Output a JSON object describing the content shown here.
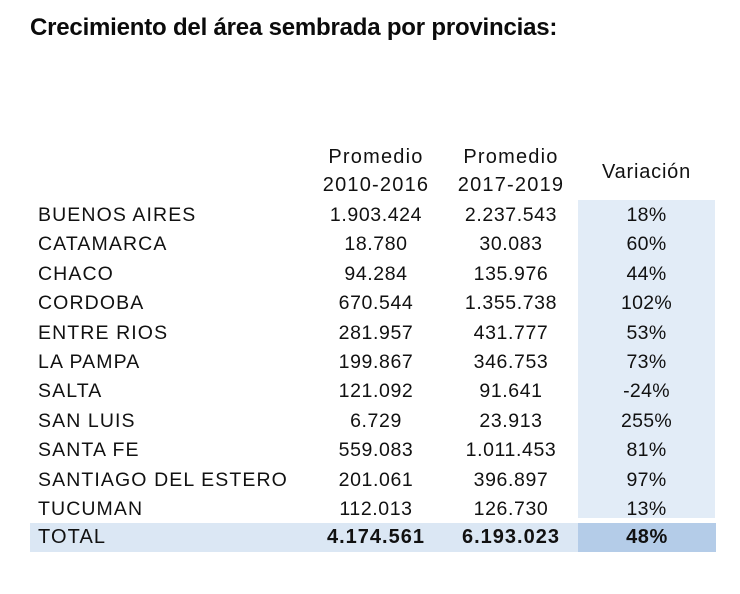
{
  "title": "Crecimiento del área sembrada por provincias:",
  "headers": {
    "col1_line1": "Promedio",
    "col1_line2": "2010-2016",
    "col2_line1": "Promedio",
    "col2_line2": "2017-2019",
    "col3": "Variación"
  },
  "rows": [
    {
      "provincia": "BUENOS AIRES",
      "prom_2010_2016": "1.903.424",
      "prom_2017_2019": "2.237.543",
      "variacion": "18%"
    },
    {
      "provincia": "CATAMARCA",
      "prom_2010_2016": "18.780",
      "prom_2017_2019": "30.083",
      "variacion": "60%"
    },
    {
      "provincia": "CHACO",
      "prom_2010_2016": "94.284",
      "prom_2017_2019": "135.976",
      "variacion": "44%"
    },
    {
      "provincia": "CORDOBA",
      "prom_2010_2016": "670.544",
      "prom_2017_2019": "1.355.738",
      "variacion": "102%"
    },
    {
      "provincia": "ENTRE RIOS",
      "prom_2010_2016": "281.957",
      "prom_2017_2019": "431.777",
      "variacion": "53%"
    },
    {
      "provincia": "LA PAMPA",
      "prom_2010_2016": "199.867",
      "prom_2017_2019": "346.753",
      "variacion": "73%"
    },
    {
      "provincia": "SALTA",
      "prom_2010_2016": "121.092",
      "prom_2017_2019": "91.641",
      "variacion": "-24%"
    },
    {
      "provincia": "SAN LUIS",
      "prom_2010_2016": "6.729",
      "prom_2017_2019": "23.913",
      "variacion": "255%"
    },
    {
      "provincia": "SANTA FE",
      "prom_2010_2016": "559.083",
      "prom_2017_2019": "1.011.453",
      "variacion": "81%"
    },
    {
      "provincia": "SANTIAGO DEL ESTERO",
      "prom_2010_2016": "201.061",
      "prom_2017_2019": "396.897",
      "variacion": "97%"
    },
    {
      "provincia": "TUCUMAN",
      "prom_2010_2016": "112.013",
      "prom_2017_2019": "126.730",
      "variacion": "13%"
    }
  ],
  "total": {
    "provincia": "TOTAL",
    "prom_2010_2016": "4.174.561",
    "prom_2017_2019": "6.193.023",
    "variacion": "48%"
  },
  "colors": {
    "variacion_band": "#e2ecf7",
    "total_row": "#dbe7f4",
    "total_variacion": "#b4cce8"
  }
}
